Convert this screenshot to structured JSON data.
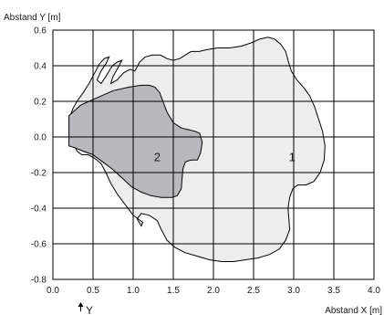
{
  "chart_data": {
    "type": "area",
    "xlabel": "Abstand X [m]",
    "ylabel": "Abstand Y [m]",
    "xlim": [
      0,
      4.0
    ],
    "ylim": [
      -0.8,
      0.6
    ],
    "xticks": [
      0.0,
      0.5,
      1.0,
      1.5,
      2.0,
      2.5,
      3.0,
      3.5,
      4.0
    ],
    "xtick_labels": [
      "0.0",
      "0.5",
      "1.0",
      "1.5",
      "2.0",
      "2.5",
      "3.0",
      "3.5",
      "4.0"
    ],
    "yticks": [
      0.6,
      0.4,
      0.2,
      0.0,
      -0.2,
      -0.4,
      -0.6,
      -0.8
    ],
    "ytick_labels": [
      "0.6",
      "0.4",
      "0.2",
      "0.0",
      "-0.2",
      "-0.4",
      "-0.6",
      "-0.8"
    ],
    "grid": true,
    "origin_marker_label": "Y",
    "series": [
      {
        "label": "1",
        "color": "#ededed",
        "label_at": [
          2.98,
          -0.11
        ],
        "points": [
          [
            0.2,
            0.1
          ],
          [
            0.25,
            0.16
          ],
          [
            0.3,
            0.2
          ],
          [
            0.38,
            0.25
          ],
          [
            0.45,
            0.3
          ],
          [
            0.52,
            0.36
          ],
          [
            0.58,
            0.41
          ],
          [
            0.64,
            0.44
          ],
          [
            0.7,
            0.45
          ],
          [
            0.66,
            0.41
          ],
          [
            0.6,
            0.37
          ],
          [
            0.55,
            0.32
          ],
          [
            0.6,
            0.3
          ],
          [
            0.66,
            0.34
          ],
          [
            0.74,
            0.4
          ],
          [
            0.8,
            0.42
          ],
          [
            0.86,
            0.43
          ],
          [
            0.8,
            0.38
          ],
          [
            0.75,
            0.34
          ],
          [
            0.72,
            0.3
          ],
          [
            0.8,
            0.32
          ],
          [
            0.88,
            0.36
          ],
          [
            0.96,
            0.38
          ],
          [
            1.02,
            0.37
          ],
          [
            1.08,
            0.42
          ],
          [
            1.15,
            0.45
          ],
          [
            1.24,
            0.46
          ],
          [
            1.34,
            0.46
          ],
          [
            1.42,
            0.44
          ],
          [
            1.5,
            0.43
          ],
          [
            1.58,
            0.44
          ],
          [
            1.65,
            0.46
          ],
          [
            1.72,
            0.48
          ],
          [
            1.82,
            0.48
          ],
          [
            1.92,
            0.49
          ],
          [
            2.05,
            0.5
          ],
          [
            2.2,
            0.5
          ],
          [
            2.35,
            0.51
          ],
          [
            2.48,
            0.53
          ],
          [
            2.58,
            0.55
          ],
          [
            2.68,
            0.56
          ],
          [
            2.76,
            0.55
          ],
          [
            2.84,
            0.52
          ],
          [
            2.9,
            0.48
          ],
          [
            2.93,
            0.43
          ],
          [
            2.97,
            0.37
          ],
          [
            3.04,
            0.32
          ],
          [
            3.12,
            0.28
          ],
          [
            3.2,
            0.23
          ],
          [
            3.26,
            0.17
          ],
          [
            3.31,
            0.1
          ],
          [
            3.36,
            0.03
          ],
          [
            3.39,
            -0.05
          ],
          [
            3.38,
            -0.13
          ],
          [
            3.33,
            -0.2
          ],
          [
            3.25,
            -0.25
          ],
          [
            3.15,
            -0.27
          ],
          [
            3.05,
            -0.27
          ],
          [
            2.99,
            -0.29
          ],
          [
            2.95,
            -0.34
          ],
          [
            2.93,
            -0.4
          ],
          [
            2.94,
            -0.46
          ],
          [
            2.95,
            -0.52
          ],
          [
            2.9,
            -0.58
          ],
          [
            2.82,
            -0.63
          ],
          [
            2.7,
            -0.66
          ],
          [
            2.55,
            -0.68
          ],
          [
            2.4,
            -0.69
          ],
          [
            2.25,
            -0.7
          ],
          [
            2.1,
            -0.7
          ],
          [
            1.95,
            -0.69
          ],
          [
            1.8,
            -0.67
          ],
          [
            1.65,
            -0.65
          ],
          [
            1.52,
            -0.62
          ],
          [
            1.42,
            -0.58
          ],
          [
            1.35,
            -0.52
          ],
          [
            1.3,
            -0.47
          ],
          [
            1.2,
            -0.44
          ],
          [
            1.1,
            -0.43
          ],
          [
            1.05,
            -0.46
          ],
          [
            1.1,
            -0.5
          ],
          [
            1.12,
            -0.48
          ],
          [
            1.0,
            -0.44
          ],
          [
            0.9,
            -0.38
          ],
          [
            0.8,
            -0.32
          ],
          [
            0.72,
            -0.26
          ],
          [
            0.66,
            -0.2
          ],
          [
            0.6,
            -0.15
          ],
          [
            0.52,
            -0.12
          ],
          [
            0.44,
            -0.1
          ],
          [
            0.36,
            -0.1
          ],
          [
            0.3,
            -0.08
          ],
          [
            0.27,
            -0.05
          ],
          [
            0.33,
            -0.06
          ],
          [
            0.4,
            -0.08
          ],
          [
            0.48,
            -0.07
          ],
          [
            0.5,
            -0.02
          ],
          [
            0.42,
            0.0
          ],
          [
            0.35,
            0.03
          ],
          [
            0.28,
            0.06
          ],
          [
            0.22,
            0.08
          ],
          [
            0.2,
            0.1
          ]
        ]
      },
      {
        "label": "2",
        "color": "#b9b9bd",
        "label_at": [
          1.3,
          -0.11
        ],
        "points": [
          [
            0.2,
            0.12
          ],
          [
            0.35,
            0.18
          ],
          [
            0.55,
            0.22
          ],
          [
            0.75,
            0.26
          ],
          [
            0.95,
            0.28
          ],
          [
            1.1,
            0.29
          ],
          [
            1.2,
            0.29
          ],
          [
            1.27,
            0.28
          ],
          [
            1.33,
            0.25
          ],
          [
            1.37,
            0.2
          ],
          [
            1.42,
            0.14
          ],
          [
            1.5,
            0.08
          ],
          [
            1.6,
            0.05
          ],
          [
            1.7,
            0.04
          ],
          [
            1.78,
            0.03
          ],
          [
            1.83,
            0.02
          ],
          [
            1.86,
            -0.03
          ],
          [
            1.84,
            -0.09
          ],
          [
            1.8,
            -0.13
          ],
          [
            1.72,
            -0.13
          ],
          [
            1.65,
            -0.14
          ],
          [
            1.62,
            -0.18
          ],
          [
            1.61,
            -0.23
          ],
          [
            1.6,
            -0.29
          ],
          [
            1.55,
            -0.33
          ],
          [
            1.48,
            -0.34
          ],
          [
            1.35,
            -0.34
          ],
          [
            1.22,
            -0.33
          ],
          [
            1.1,
            -0.31
          ],
          [
            0.98,
            -0.28
          ],
          [
            0.86,
            -0.23
          ],
          [
            0.74,
            -0.18
          ],
          [
            0.62,
            -0.14
          ],
          [
            0.5,
            -0.1
          ],
          [
            0.38,
            -0.08
          ],
          [
            0.27,
            -0.06
          ],
          [
            0.2,
            -0.05
          ]
        ]
      }
    ]
  }
}
